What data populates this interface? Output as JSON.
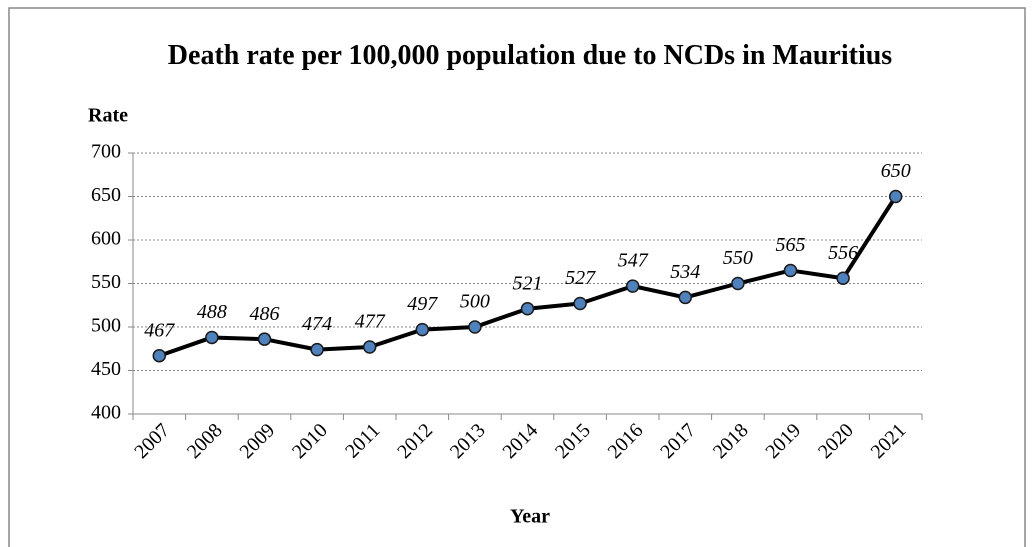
{
  "chart_data": {
    "type": "line",
    "title": "Death rate per 100,000 population due to NCDs in Mauritius",
    "y_label": "Rate",
    "x_label": "Year",
    "categories": [
      "2007",
      "2008",
      "2009",
      "2010",
      "2011",
      "2012",
      "2013",
      "2014",
      "2015",
      "2016",
      "2017",
      "2018",
      "2019",
      "2020",
      "2021"
    ],
    "values": [
      467,
      488,
      486,
      474,
      477,
      497,
      500,
      521,
      527,
      547,
      534,
      550,
      565,
      556,
      650
    ],
    "color": "#000000",
    "marker_color": "#4f81bd",
    "ylim": [
      400,
      700
    ],
    "yticks": [
      400,
      450,
      500,
      550,
      600,
      650,
      700
    ],
    "grid": true
  }
}
